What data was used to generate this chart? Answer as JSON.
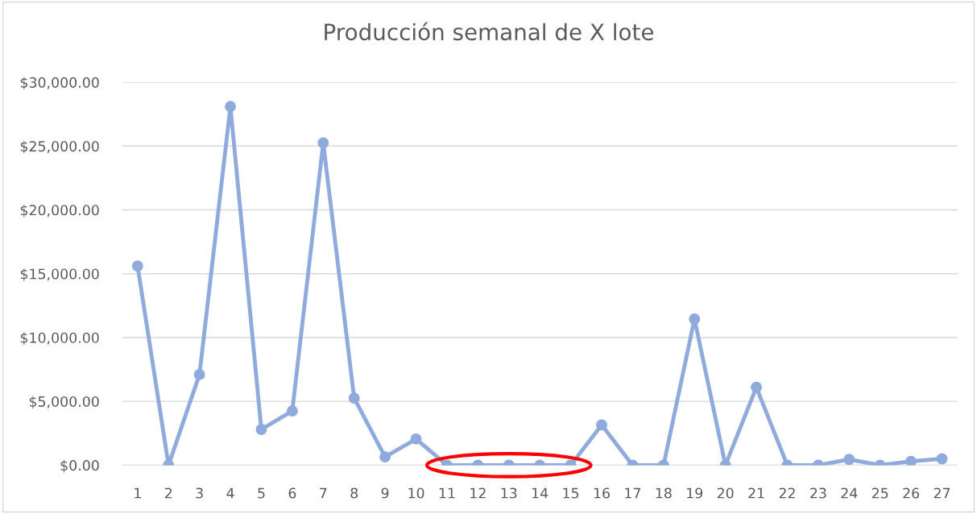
{
  "chart_data": {
    "type": "line",
    "title": "Producción semanal de X lote",
    "categories": [
      "1",
      "2",
      "3",
      "4",
      "5",
      "6",
      "7",
      "8",
      "9",
      "10",
      "11",
      "12",
      "13",
      "14",
      "15",
      "16",
      "17",
      "18",
      "19",
      "20",
      "21",
      "22",
      "23",
      "24",
      "25",
      "26",
      "27"
    ],
    "series": [
      {
        "color": "#8faadc",
        "values": [
          15600,
          0,
          7100,
          28100,
          2800,
          4250,
          25250,
          5250,
          650,
          2050,
          0,
          0,
          0,
          0,
          0,
          3150,
          0,
          0,
          11450,
          0,
          6100,
          0,
          0,
          450,
          0,
          300,
          500
        ]
      }
    ],
    "ylim": [
      0,
      30000
    ],
    "yticks": [
      {
        "value": 0,
        "label": "$0.00"
      },
      {
        "value": 5000,
        "label": "$5,000.00"
      },
      {
        "value": 10000,
        "label": "$10,000.00"
      },
      {
        "value": 15000,
        "label": "$15,000.00"
      },
      {
        "value": 20000,
        "label": "$20,000.00"
      },
      {
        "value": 25000,
        "label": "$25,000.00"
      },
      {
        "value": 30000,
        "label": "$30,000.00"
      }
    ],
    "grid": "y",
    "marker": "circle",
    "line_style": "solid",
    "legend": false
  }
}
